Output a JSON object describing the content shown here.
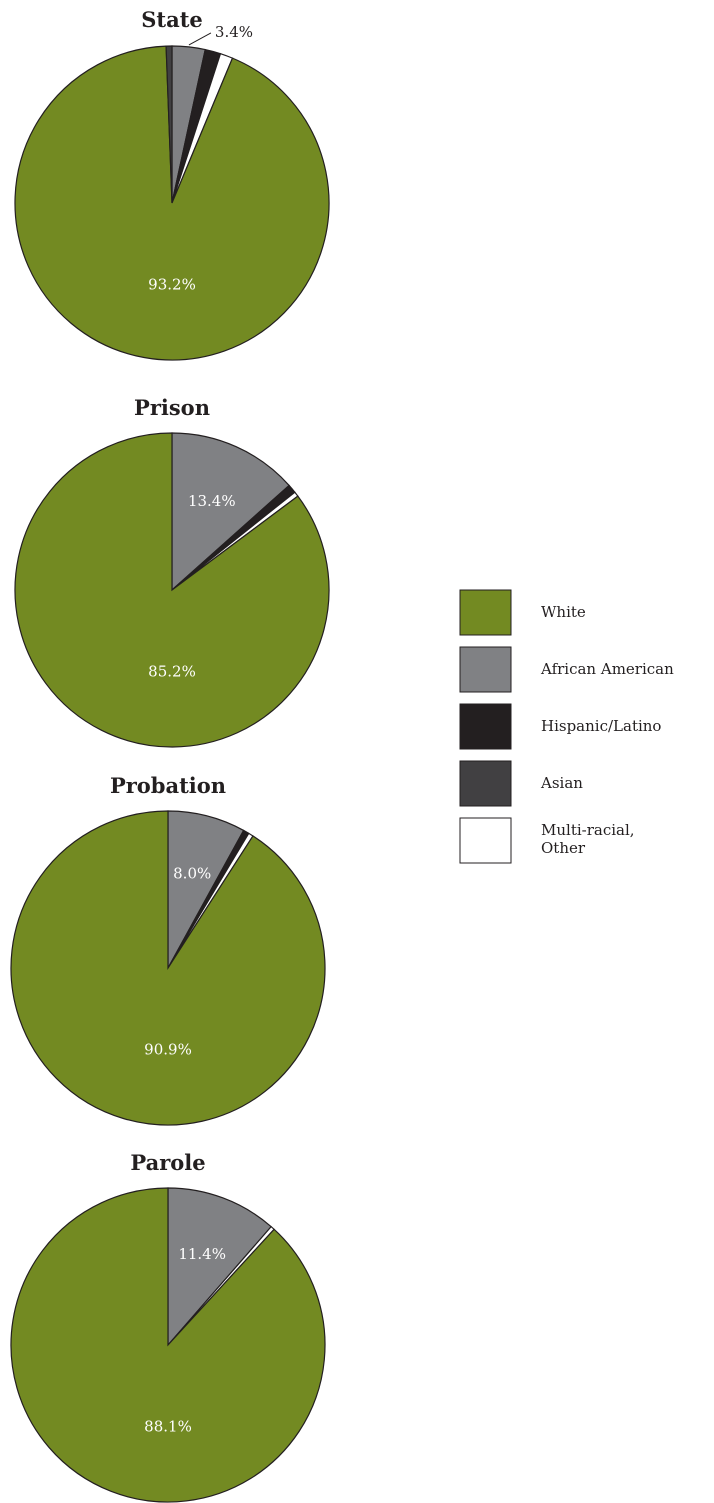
{
  "colors": {
    "White": "#738a22",
    "African American": "#808184",
    "Hispanic/Latino": "#231f20",
    "Asian": "#414042",
    "Multi-racial, Other": "#ffffff"
  },
  "legend": {
    "placement": "right",
    "items": [
      {
        "label": "White",
        "key": "White"
      },
      {
        "label": "African American",
        "key": "African American"
      },
      {
        "label": "Hispanic/Latino",
        "key": "Hispanic/Latino"
      },
      {
        "label": "Asian",
        "key": "Asian"
      },
      {
        "label": "Multi-racial,\nOther",
        "key": "Multi-racial, Other"
      }
    ]
  },
  "chart_data": [
    {
      "type": "pie",
      "title": "State",
      "slices": [
        {
          "category": "African American",
          "value": 3.4,
          "label": "3.4%"
        },
        {
          "category": "Hispanic/Latino",
          "value": 1.6,
          "label": ""
        },
        {
          "category": "Multi-racial, Other",
          "value": 1.3,
          "label": ""
        },
        {
          "category": "White",
          "value": 93.2,
          "label": "93.2%"
        },
        {
          "category": "Asian",
          "value": 0.6,
          "label": ""
        }
      ]
    },
    {
      "type": "pie",
      "title": "Prison",
      "slices": [
        {
          "category": "African American",
          "value": 13.4,
          "label": "13.4%"
        },
        {
          "category": "Hispanic/Latino",
          "value": 0.9,
          "label": ""
        },
        {
          "category": "Multi-racial, Other",
          "value": 0.5,
          "label": ""
        },
        {
          "category": "White",
          "value": 85.2,
          "label": "85.2%"
        }
      ]
    },
    {
      "type": "pie",
      "title": "Probation",
      "slices": [
        {
          "category": "African American",
          "value": 8.0,
          "label": "8.0%"
        },
        {
          "category": "Hispanic/Latino",
          "value": 0.6,
          "label": ""
        },
        {
          "category": "Multi-racial, Other",
          "value": 0.5,
          "label": ""
        },
        {
          "category": "White",
          "value": 90.9,
          "label": "90.9%"
        }
      ]
    },
    {
      "type": "pie",
      "title": "Parole",
      "slices": [
        {
          "category": "African American",
          "value": 11.4,
          "label": "11.4%"
        },
        {
          "category": "Multi-racial, Other",
          "value": 0.4,
          "label": ""
        },
        {
          "category": "White",
          "value": 88.1,
          "label": "88.1%"
        }
      ]
    }
  ]
}
